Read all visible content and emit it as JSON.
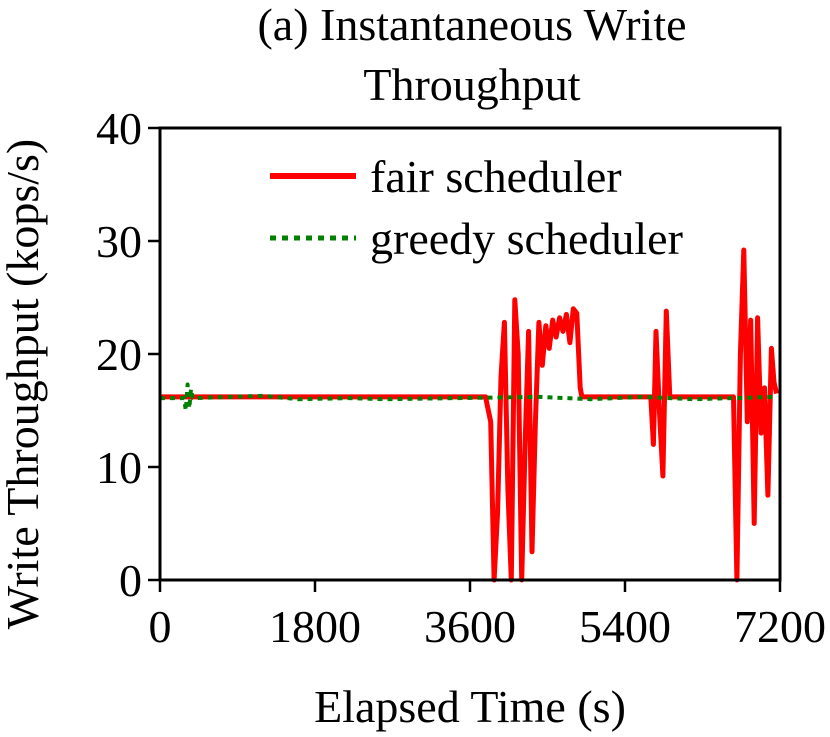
{
  "chart_data": {
    "type": "line",
    "title_lines": [
      "(a) Instantaneous Write",
      "Throughput"
    ],
    "xlabel": "Elapsed Time (s)",
    "ylabel": "Write Throughput (kops/s)",
    "xlim": [
      0,
      7200
    ],
    "ylim": [
      0,
      40
    ],
    "x_ticks": [
      0,
      1800,
      3600,
      5400,
      7200
    ],
    "x_tick_labels": [
      "0",
      "1800",
      "3600",
      "5400",
      "7200"
    ],
    "y_ticks": [
      0,
      10,
      20,
      30,
      40
    ],
    "y_tick_labels": [
      "0",
      "10",
      "20",
      "30",
      "40"
    ],
    "grid": false,
    "legend_position": "top-right",
    "series": [
      {
        "name": "fair scheduler",
        "color": "#ff0000",
        "line_style": "solid",
        "x": [
          0,
          3780,
          3840,
          3880,
          3920,
          3960,
          4000,
          4040,
          4080,
          4120,
          4160,
          4200,
          4240,
          4280,
          4320,
          4360,
          4400,
          4440,
          4480,
          4520,
          4560,
          4600,
          4640,
          4680,
          4720,
          4760,
          4800,
          4840,
          4880,
          4900,
          5700,
          5730,
          5760,
          5800,
          5840,
          5880,
          5920,
          5960,
          5980,
          6660,
          6700,
          6740,
          6780,
          6820,
          6860,
          6900,
          6940,
          6980,
          7020,
          7060,
          7100,
          7130,
          7160
        ],
        "y": [
          16.2,
          16.2,
          14.0,
          0,
          6.0,
          18.0,
          22.8,
          8.0,
          0,
          24.8,
          20.0,
          0,
          12.0,
          22.0,
          2.5,
          14.0,
          22.8,
          19.0,
          22.5,
          20.5,
          23.0,
          21.5,
          23.2,
          22.0,
          23.5,
          21.0,
          24.0,
          23.6,
          17.0,
          16.2,
          16.2,
          12.0,
          22.0,
          15.0,
          9.2,
          23.8,
          16.2,
          16.2,
          16.2,
          16.2,
          0,
          20.0,
          29.2,
          14.0,
          23.0,
          5.0,
          23.2,
          13.0,
          17.0,
          7.5,
          20.5,
          17.5,
          16.5
        ]
      },
      {
        "name": "greedy scheduler",
        "color": "#008000",
        "line_style": "dotted",
        "x": [
          0,
          280,
          300,
          320,
          340,
          360,
          380,
          400,
          1200,
          1600,
          2200,
          2600,
          4400,
          5000,
          5600,
          6200,
          7160
        ],
        "y": [
          16.1,
          16.1,
          15.0,
          17.3,
          15.2,
          16.9,
          16.1,
          16.1,
          16.3,
          16.0,
          16.1,
          16.0,
          16.2,
          16.0,
          16.2,
          16.0,
          16.2
        ]
      }
    ]
  }
}
